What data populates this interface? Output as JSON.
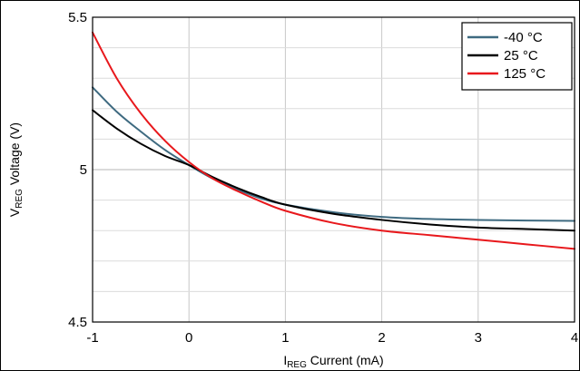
{
  "chart_data": {
    "type": "line",
    "title": "",
    "xlabel": {
      "prefix": "I",
      "sub": "REG",
      "rest": " Current (mA)"
    },
    "ylabel": {
      "prefix": "V",
      "sub": "REG",
      "rest": " Voltage (V)"
    },
    "xlim": [
      -1,
      4
    ],
    "ylim": [
      4.5,
      5.5
    ],
    "x_ticks": [
      -1,
      0,
      1,
      2,
      3,
      4
    ],
    "x_tick_labels": [
      "-1",
      "0",
      "1",
      "2",
      "3",
      "4"
    ],
    "y_ticks": [
      4.5,
      5,
      5.5
    ],
    "y_tick_labels": [
      "4.5",
      "5",
      "5.5"
    ],
    "y_minor_gridlines": [
      4.6,
      4.7,
      4.8,
      4.9,
      5.1,
      5.2,
      5.3,
      5.4
    ],
    "grid": true,
    "legend_position": "top-right",
    "series": [
      {
        "name": "-40 °C",
        "color": "#3e6a80",
        "x": [
          -1,
          -0.75,
          -0.5,
          -0.25,
          0,
          0.25,
          0.5,
          0.75,
          1,
          1.5,
          2,
          2.5,
          3,
          3.5,
          4
        ],
        "y": [
          5.27,
          5.19,
          5.125,
          5.065,
          5.015,
          4.97,
          4.935,
          4.905,
          4.885,
          4.86,
          4.845,
          4.838,
          4.835,
          4.833,
          4.832
        ]
      },
      {
        "name": "25 °C",
        "color": "#000000",
        "x": [
          -1,
          -0.75,
          -0.5,
          -0.25,
          0,
          0.25,
          0.5,
          0.75,
          1,
          1.5,
          2,
          2.5,
          3,
          3.5,
          4
        ],
        "y": [
          5.195,
          5.135,
          5.085,
          5.045,
          5.015,
          4.975,
          4.94,
          4.91,
          4.885,
          4.855,
          4.835,
          4.82,
          4.81,
          4.805,
          4.8
        ]
      },
      {
        "name": "125 °C",
        "color": "#e8181c",
        "x": [
          -1,
          -0.75,
          -0.5,
          -0.25,
          0,
          0.25,
          0.5,
          0.75,
          1,
          1.5,
          2,
          2.5,
          3,
          3.5,
          4
        ],
        "y": [
          5.45,
          5.3,
          5.185,
          5.095,
          5.025,
          4.97,
          4.93,
          4.895,
          4.865,
          4.825,
          4.8,
          4.785,
          4.77,
          4.755,
          4.74
        ]
      }
    ]
  }
}
